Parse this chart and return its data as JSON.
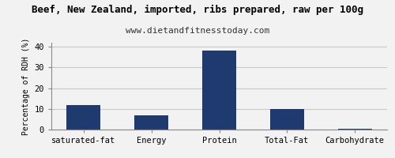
{
  "title": "Beef, New Zealand, imported, ribs prepared, raw per 100g",
  "subtitle": "www.dietandfitnesstoday.com",
  "categories": [
    "saturated-fat",
    "Energy",
    "Protein",
    "Total-Fat",
    "Carbohydrate"
  ],
  "values": [
    12,
    7,
    38,
    10,
    0.5
  ],
  "bar_color": "#1f3a6e",
  "ylabel": "Percentage of RDH (%)",
  "ylim": [
    0,
    42
  ],
  "yticks": [
    0,
    10,
    20,
    30,
    40
  ],
  "background_color": "#f2f2f2",
  "plot_background_color": "#f2f2f2",
  "title_fontsize": 9,
  "subtitle_fontsize": 8,
  "ylabel_fontsize": 7,
  "xlabel_fontsize": 7.5,
  "tick_fontsize": 7.5,
  "grid_color": "#c8c8c8"
}
